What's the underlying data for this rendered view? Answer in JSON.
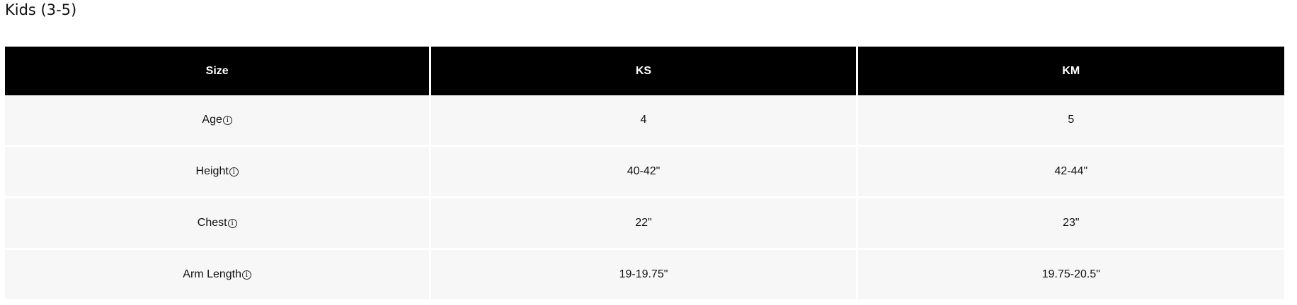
{
  "title": "Kids (3-5)",
  "headers": [
    "Size",
    "KS",
    "KM"
  ],
  "rows": [
    {
      "label": "Age",
      "values": [
        "4",
        "5"
      ]
    },
    {
      "label": "Height",
      "values": [
        "40-42\"",
        "42-44\""
      ]
    },
    {
      "label": "Chest",
      "values": [
        "22\"",
        "23\""
      ]
    },
    {
      "label": "Arm Length",
      "values": [
        "19-19.75\"",
        "19.75-20.5\""
      ]
    }
  ],
  "info_icon": "i"
}
